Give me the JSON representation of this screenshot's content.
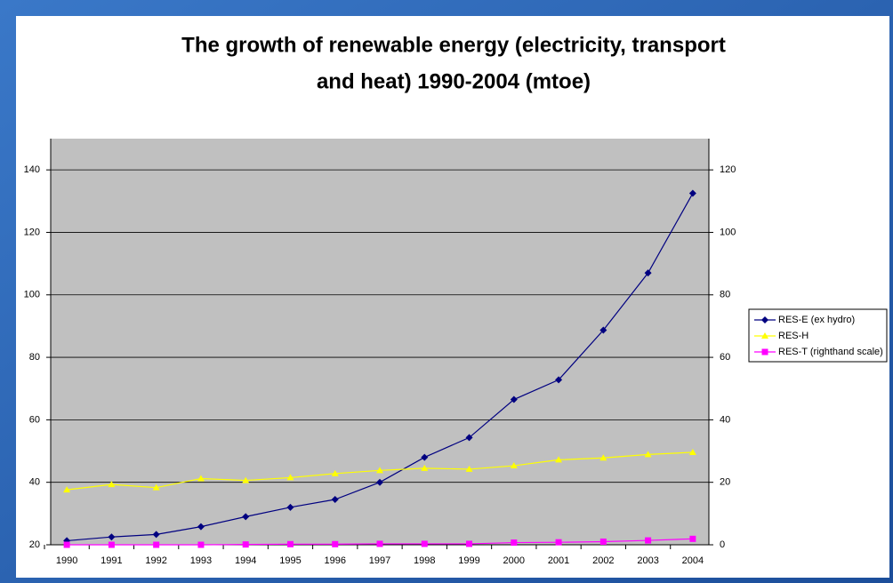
{
  "chart_data": {
    "type": "line",
    "title": [
      "The growth of renewable energy (electricity, transport",
      "and heat) 1990-2004 (mtoe)"
    ],
    "categories": [
      "1990",
      "1991",
      "1992",
      "1993",
      "1994",
      "1995",
      "1996",
      "1997",
      "1998",
      "1999",
      "2000",
      "2001",
      "2002",
      "2003",
      "2004"
    ],
    "series": [
      {
        "name": "RES-E (ex hydro)",
        "color": "#000080",
        "marker": "diamond",
        "values": [
          21.3,
          22.5,
          23.3,
          25.8,
          29,
          32,
          34.5,
          40,
          48,
          54.3,
          66.5,
          72.8,
          88.7,
          107,
          132.5
        ]
      },
      {
        "name": "RES-H",
        "color": "#ffff00",
        "marker": "triangle",
        "values": [
          37.6,
          39.3,
          38.3,
          41.2,
          40.6,
          41.5,
          42.8,
          43.8,
          44.5,
          44.2,
          45.3,
          47.2,
          47.8,
          48.9,
          49.6
        ]
      },
      {
        "name": "RES-T (righthand scale)",
        "color": "#ff00ff",
        "marker": "square",
        "axis": "y2",
        "values": [
          0,
          0,
          0,
          0,
          0.1,
          0.2,
          0.2,
          0.3,
          0.3,
          0.3,
          0.7,
          0.8,
          1.0,
          1.4,
          1.9
        ]
      }
    ],
    "ylim": [
      20,
      150
    ],
    "yticks": [
      20,
      40,
      60,
      80,
      100,
      120,
      140
    ],
    "y2lim": [
      0,
      130
    ],
    "y2ticks": [
      0,
      20,
      40,
      60,
      80,
      100,
      120
    ],
    "grid": true,
    "legend": "right"
  }
}
